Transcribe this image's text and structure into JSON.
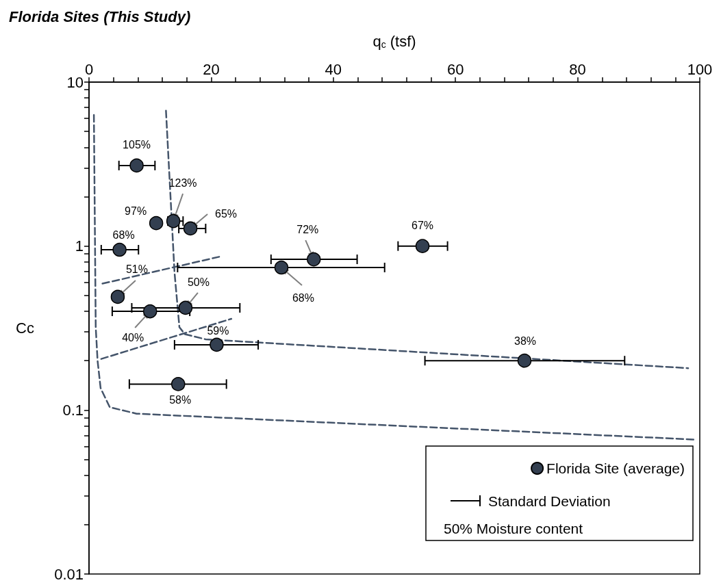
{
  "chart_data": {
    "type": "scatter",
    "title": "Florida Sites (This Study)",
    "xlabel": "q$_{c}$ (tsf)",
    "ylabel": "Cc",
    "log": "y",
    "grid": false,
    "legend": "bottom right",
    "xlim": [
      0,
      100
    ],
    "xticks": [
      0,
      {
        "value": 4,
        "label": null
      },
      {
        "value": 8,
        "label": null
      },
      {
        "value": 12,
        "label": null
      },
      {
        "value": 16,
        "label": null
      },
      20,
      {
        "value": 24,
        "label": null
      },
      {
        "value": 28,
        "label": null
      },
      {
        "value": 32,
        "label": null
      },
      {
        "value": 36,
        "label": null
      },
      40,
      {
        "value": 44,
        "label": null
      },
      {
        "value": 48,
        "label": null
      },
      {
        "value": 52,
        "label": null
      },
      {
        "value": 56,
        "label": null
      },
      60,
      {
        "value": 64,
        "label": null
      },
      {
        "value": 68,
        "label": null
      },
      {
        "value": 72,
        "label": null
      },
      {
        "value": 76,
        "label": null
      },
      80,
      {
        "value": 84,
        "label": null
      },
      {
        "value": 88,
        "label": null
      },
      {
        "value": 92,
        "label": null
      },
      {
        "value": 96,
        "label": null
      },
      100
    ],
    "ylim": [
      0.01,
      10
    ],
    "yticks": [
      0.01,
      {
        "value": 0.02,
        "label": null
      },
      {
        "value": 0.03,
        "label": null
      },
      {
        "value": 0.04,
        "label": null
      },
      {
        "value": 0.05,
        "label": null
      },
      {
        "value": 0.06,
        "label": null
      },
      {
        "value": 0.07,
        "label": null
      },
      {
        "value": 0.08,
        "label": null
      },
      {
        "value": 0.09,
        "label": null
      },
      0.1,
      {
        "value": 0.2,
        "label": null
      },
      {
        "value": 0.3,
        "label": null
      },
      {
        "value": 0.4,
        "label": null
      },
      {
        "value": 0.5,
        "label": null
      },
      {
        "value": 0.6,
        "label": null
      },
      {
        "value": 0.7,
        "label": null
      },
      {
        "value": 0.8,
        "label": null
      },
      {
        "value": 0.9,
        "label": null
      },
      1,
      {
        "value": 2,
        "label": null
      },
      {
        "value": 3,
        "label": null
      },
      {
        "value": 4,
        "label": null
      },
      {
        "value": 5,
        "label": null
      },
      {
        "value": 6,
        "label": null
      },
      {
        "value": 7,
        "label": null
      },
      {
        "value": 8,
        "label": null
      },
      {
        "value": 9,
        "label": null
      },
      10
    ],
    "series": [
      {
        "name": "Florida Site (average)",
        "color": "#333f50",
        "marker": "circle",
        "x": [
          7.8,
          11.0,
          13.8,
          16.6,
          5.0,
          36.8,
          31.5,
          54.6,
          4.7,
          10.0,
          15.8,
          20.9,
          71.3,
          14.6
        ],
        "values": [
          3.1,
          1.38,
          1.42,
          1.28,
          0.95,
          0.83,
          0.74,
          1.0,
          0.49,
          0.4,
          0.42,
          0.25,
          0.2,
          0.144
        ],
        "xerrors": [
          [
            4.9,
            10.8
          ],
          null,
          [
            12.9,
            15.4
          ],
          [
            14.7,
            19.1
          ],
          [
            2.0,
            8.1
          ],
          [
            29.8,
            43.9
          ],
          [
            14.5,
            48.4
          ],
          [
            50.6,
            58.7
          ],
          null,
          [
            3.8,
            16.5
          ],
          [
            7.0,
            24.7
          ],
          [
            14.0,
            27.7
          ],
          [
            55.0,
            87.7
          ],
          [
            6.6,
            22.5
          ]
        ]
      },
      {
        "type": "line",
        "color": "#44546a",
        "line_style": "dashed",
        "marker": "none",
        "x": [
          0.8,
          1.1,
          1.4,
          1.9,
          3.4,
          7.8,
          99.4
        ],
        "values": [
          6.3,
          0.32,
          0.2,
          0.136,
          0.104,
          0.095,
          0.066
        ]
      },
      {
        "type": "line",
        "color": "#44546a",
        "line_style": "dashed",
        "marker": "none",
        "x": [
          12.6,
          14.0,
          14.8,
          15.7,
          19.1,
          98.1
        ],
        "values": [
          6.7,
          0.69,
          0.32,
          0.29,
          0.27,
          0.18
        ]
      },
      {
        "type": "line",
        "color": "#44546a",
        "line_style": "dashed",
        "marker": "none",
        "x": [
          2.0,
          23.3
        ],
        "values": [
          0.205,
          0.36
        ]
      },
      {
        "type": "line",
        "color": "#44546a",
        "line_style": "dashed",
        "marker": "none",
        "x": [
          2.2,
          21.3
        ],
        "values": [
          0.59,
          0.86
        ]
      }
    ],
    "annotations": [
      {
        "text": "105%",
        "x": 7.8,
        "y": 3.1
      },
      {
        "text": "97%",
        "x": 11.0,
        "y": 1.38
      },
      {
        "text": "123%",
        "x": 13.8,
        "y": 1.42
      },
      {
        "text": "65%",
        "x": 16.6,
        "y": 1.28
      },
      {
        "text": "68%",
        "x": 5.0,
        "y": 0.95
      },
      {
        "text": "72%",
        "x": 36.8,
        "y": 0.83
      },
      {
        "text": "68%",
        "x": 31.5,
        "y": 0.74
      },
      {
        "text": "67%",
        "x": 54.6,
        "y": 1.0
      },
      {
        "text": "51%",
        "x": 4.7,
        "y": 0.49
      },
      {
        "text": "40%",
        "x": 10.0,
        "y": 0.4
      },
      {
        "text": "50%",
        "x": 15.8,
        "y": 0.42
      },
      {
        "text": "59%",
        "x": 20.9,
        "y": 0.25
      },
      {
        "text": "38%",
        "x": 71.3,
        "y": 0.2
      },
      {
        "text": "58%",
        "x": 14.6,
        "y": 0.144
      },
      "Standard Deviation",
      "50% Moisture content"
    ]
  }
}
